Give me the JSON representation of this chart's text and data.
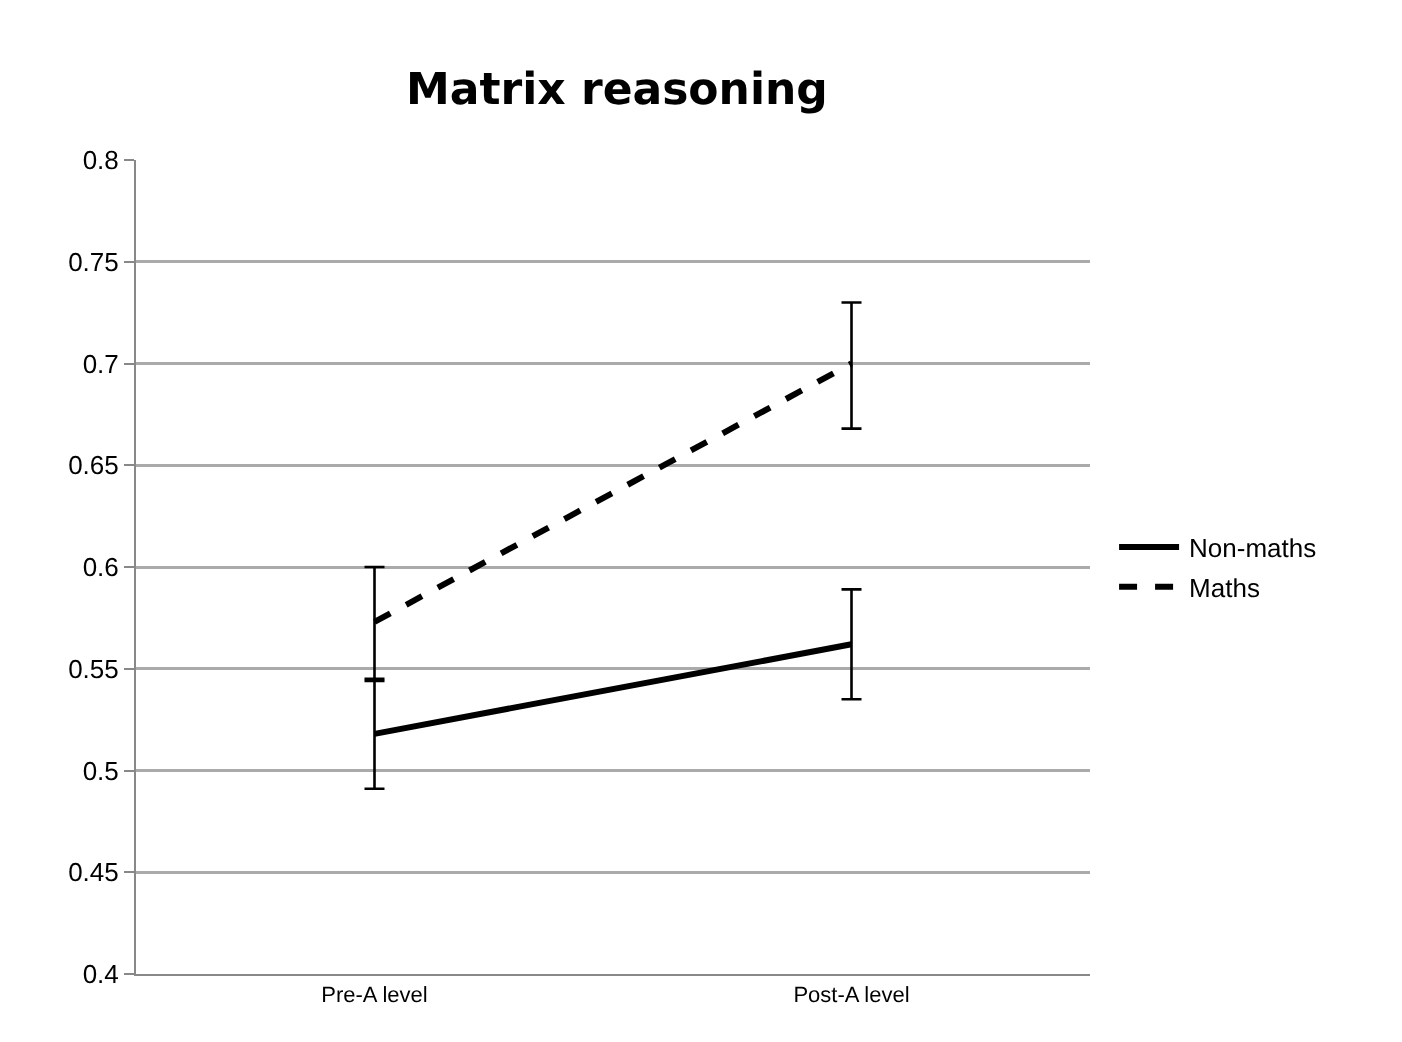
{
  "chart_data": {
    "type": "line",
    "title": "Matrix reasoning",
    "categories": [
      "Pre-A level",
      "Post-A level"
    ],
    "series": [
      {
        "name": "Non-maths",
        "color": "#000000",
        "line_style": "solid",
        "values": [
          0.518,
          0.562
        ],
        "errors": [
          [
            0.491,
            0.544
          ],
          [
            0.535,
            0.589
          ]
        ]
      },
      {
        "name": "Maths",
        "color": "#000000",
        "line_style": "dashed",
        "values": [
          0.573,
          0.7
        ],
        "errors": [
          [
            0.545,
            0.6
          ],
          [
            0.668,
            0.73
          ]
        ]
      }
    ],
    "ylim": [
      0.4,
      0.8
    ],
    "yticks": [
      0.4,
      0.45,
      0.5,
      0.55,
      0.6,
      0.65,
      0.7,
      0.75,
      0.8
    ],
    "grid": "y",
    "legend": "right",
    "marker": "none"
  }
}
